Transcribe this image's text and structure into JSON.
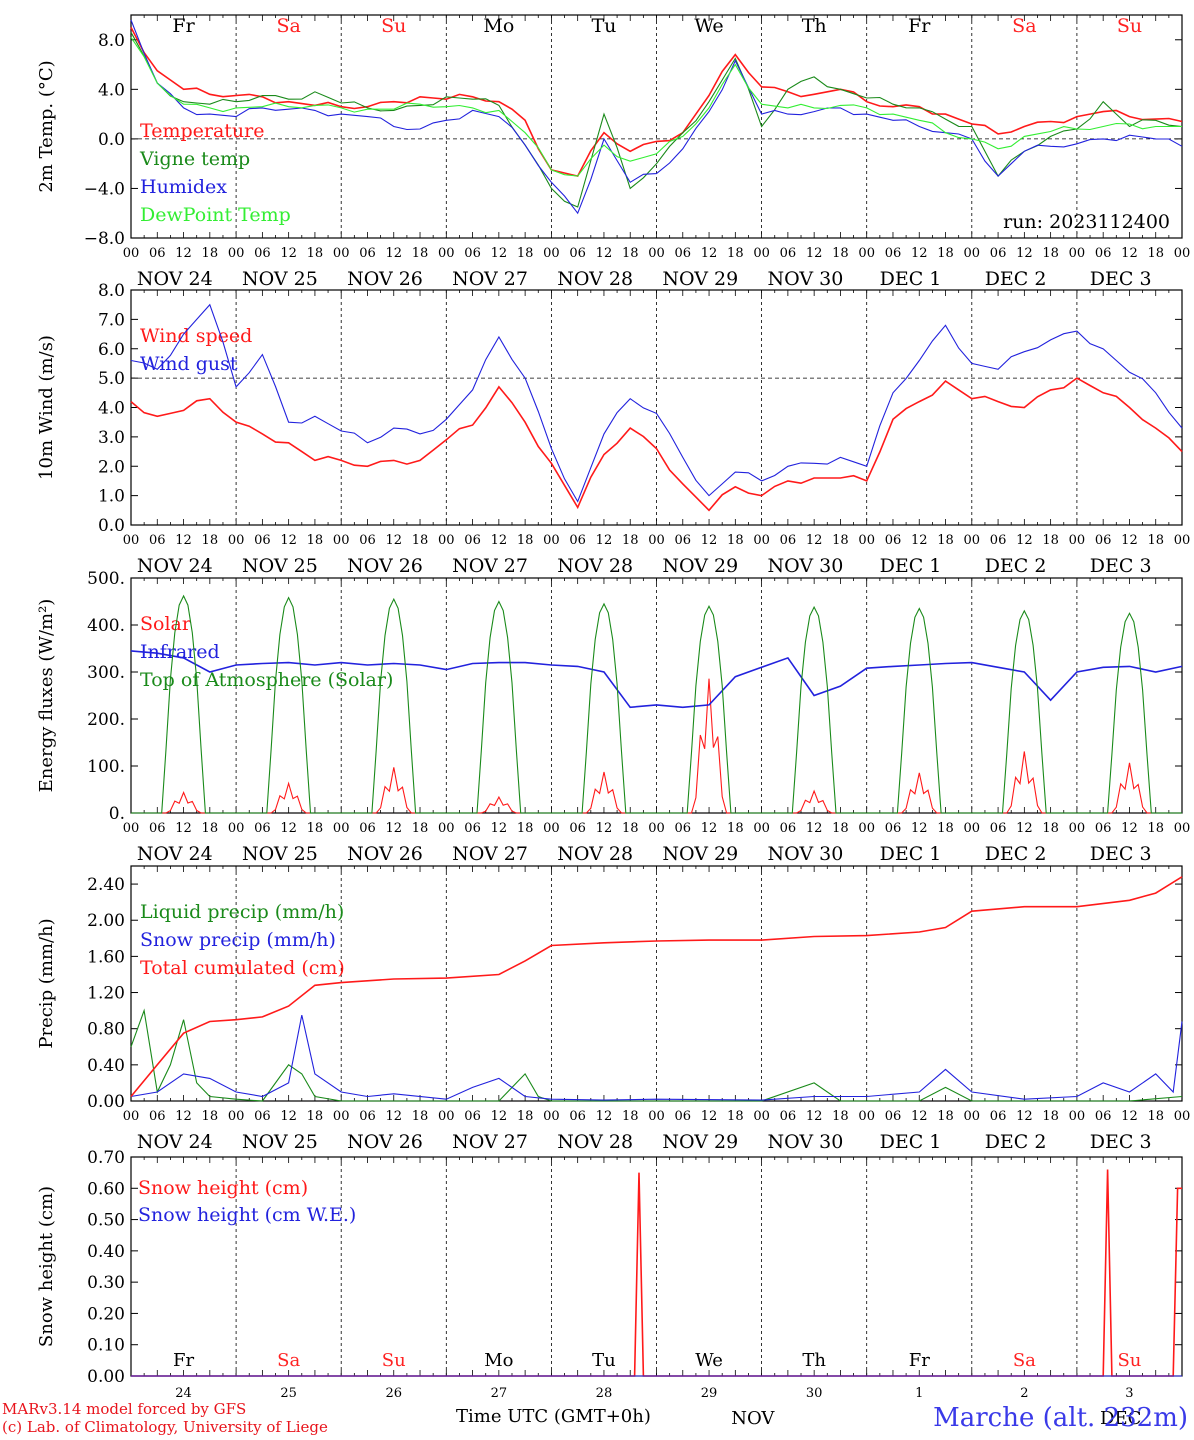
{
  "chart_data": [
    {
      "type": "line",
      "ylabel": "2m Temp. (°C)",
      "ylim": [
        -8,
        10
      ],
      "yticks": [
        "8.0",
        "4.0",
        "0.0",
        "−4.0",
        "−8.0"
      ],
      "ytick_values": [
        8,
        4,
        0,
        -4,
        -8
      ],
      "reference_line": 0,
      "day_labels": [
        "Fr",
        "Sa",
        "Su",
        "Mo",
        "Tu",
        "We",
        "Th",
        "Fr",
        "Sa",
        "Su"
      ],
      "run_label": "run: 2023112400",
      "x_hours": [
        0,
        6,
        12,
        18,
        24,
        30,
        36,
        42,
        48,
        54,
        60,
        66,
        72,
        78,
        84,
        90,
        96,
        102,
        108,
        114,
        120,
        126,
        132,
        138,
        144,
        150,
        156,
        162,
        168,
        174,
        180,
        186,
        192,
        198,
        204,
        210,
        216,
        222,
        228,
        234,
        240
      ],
      "series": [
        {
          "name": "Temperature",
          "color": "#ff1a1a",
          "values": [
            9.0,
            5.5,
            4.0,
            3.6,
            3.5,
            3.4,
            3.0,
            2.7,
            2.6,
            2.6,
            3.0,
            3.4,
            3.2,
            3.4,
            3.0,
            1.5,
            -2.5,
            -3.0,
            0.5,
            -1.0,
            -0.2,
            0.5,
            3.5,
            6.8,
            4.2,
            3.8,
            3.6,
            4.0,
            3.0,
            2.6,
            2.6,
            2.0,
            1.2,
            0.4,
            1.0,
            1.4,
            1.8,
            2.2,
            1.8,
            1.6,
            1.4
          ]
        },
        {
          "name": "Vigne temp",
          "color": "#1a8a1a",
          "values": [
            8.6,
            4.5,
            3.0,
            2.8,
            3.0,
            3.5,
            3.2,
            3.8,
            2.9,
            2.5,
            2.3,
            2.7,
            3.4,
            3.2,
            2.7,
            -0.5,
            -4.0,
            -5.5,
            2.0,
            -4.0,
            -2.0,
            0.5,
            3.0,
            6.5,
            1.0,
            4.0,
            5.0,
            4.0,
            3.3,
            2.8,
            2.5,
            1.6,
            1.0,
            -3.0,
            -1.0,
            0.2,
            0.8,
            3.0,
            1.0,
            1.5,
            1.0
          ]
        },
        {
          "name": "Humidex",
          "color": "#2222dd",
          "values": [
            9.6,
            4.5,
            2.5,
            2.0,
            1.8,
            2.5,
            2.4,
            2.3,
            2.0,
            1.8,
            1.0,
            0.8,
            1.5,
            2.3,
            1.8,
            -0.5,
            -3.5,
            -6.0,
            0.0,
            -3.5,
            -2.8,
            -0.8,
            2.2,
            6.3,
            2.0,
            2.0,
            2.2,
            2.5,
            2.0,
            1.5,
            1.0,
            0.5,
            0.0,
            -3.0,
            -1.0,
            -0.6,
            -0.4,
            0.0,
            0.3,
            0.0,
            -0.6
          ]
        },
        {
          "name": "DewPoint Temp",
          "color": "#33ee33",
          "values": [
            8.2,
            4.5,
            2.8,
            2.5,
            2.5,
            2.6,
            2.6,
            2.7,
            2.5,
            2.4,
            2.4,
            2.8,
            2.6,
            2.5,
            2.3,
            0.5,
            -2.5,
            -3.0,
            -0.5,
            -1.8,
            -1.2,
            0.2,
            2.5,
            6.0,
            2.8,
            2.5,
            2.5,
            2.7,
            2.5,
            2.0,
            1.5,
            0.5,
            0.0,
            -0.8,
            0.2,
            0.6,
            0.8,
            1.0,
            1.2,
            1.0,
            1.0
          ]
        }
      ]
    },
    {
      "type": "line",
      "ylabel": "10m Wind (m/s)",
      "ylim": [
        0,
        8
      ],
      "yticks": [
        "8.0",
        "7.0",
        "6.0",
        "5.0",
        "4.0",
        "3.0",
        "2.0",
        "1.0",
        "0.0"
      ],
      "ytick_values": [
        8,
        7,
        6,
        5,
        4,
        3,
        2,
        1,
        0
      ],
      "reference_line": 5,
      "x_hours": [
        0,
        6,
        12,
        18,
        24,
        30,
        36,
        42,
        48,
        54,
        60,
        66,
        72,
        78,
        84,
        90,
        96,
        102,
        108,
        114,
        120,
        126,
        132,
        138,
        144,
        150,
        156,
        162,
        168,
        174,
        180,
        186,
        192,
        198,
        204,
        210,
        216,
        222,
        228,
        234,
        240
      ],
      "series": [
        {
          "name": "Wind speed",
          "color": "#ff1a1a",
          "values": [
            4.2,
            3.7,
            3.9,
            4.3,
            3.5,
            3.1,
            2.8,
            2.2,
            2.2,
            2.0,
            2.2,
            2.2,
            2.9,
            3.4,
            4.7,
            3.5,
            2.1,
            0.6,
            2.4,
            3.3,
            2.6,
            1.4,
            0.5,
            1.3,
            1.0,
            1.5,
            1.6,
            1.6,
            1.5,
            3.6,
            4.2,
            4.9,
            4.3,
            4.2,
            4.0,
            4.6,
            5.0,
            4.5,
            4.0,
            3.3,
            2.5
          ]
        },
        {
          "name": "Wind gust",
          "color": "#2222dd",
          "values": [
            5.6,
            5.3,
            6.5,
            7.5,
            4.7,
            5.8,
            3.5,
            3.7,
            3.2,
            2.8,
            3.3,
            3.1,
            3.6,
            4.6,
            6.4,
            5.0,
            2.6,
            0.8,
            3.1,
            4.3,
            3.8,
            2.3,
            1.0,
            1.8,
            1.5,
            2.0,
            2.1,
            2.3,
            2.0,
            4.5,
            5.6,
            6.8,
            5.5,
            5.3,
            5.9,
            6.3,
            6.6,
            6.0,
            5.2,
            4.5,
            3.3
          ]
        }
      ]
    },
    {
      "type": "line",
      "ylabel": "Energy fluxes (W/m²)",
      "ylim": [
        0,
        500
      ],
      "yticks": [
        "500.",
        "400.",
        "300.",
        "200.",
        "100.",
        "0."
      ],
      "ytick_values": [
        500,
        400,
        300,
        200,
        100,
        0
      ],
      "series": [
        {
          "name": "Solar",
          "color": "#ff1a1a",
          "day_peaks": [
            45,
            65,
            100,
            35,
            90,
            295,
            48,
            88,
            135,
            110
          ]
        },
        {
          "name": "Infrared",
          "color": "#2222dd",
          "hours": [
            0,
            6,
            12,
            18,
            24,
            30,
            36,
            42,
            48,
            54,
            60,
            66,
            72,
            78,
            84,
            90,
            96,
            102,
            108,
            114,
            120,
            126,
            132,
            138,
            144,
            150,
            156,
            162,
            168,
            174,
            180,
            186,
            192,
            198,
            204,
            210,
            216,
            222,
            228,
            234,
            240
          ],
          "values": [
            345,
            340,
            330,
            300,
            315,
            318,
            320,
            315,
            320,
            315,
            318,
            315,
            305,
            318,
            320,
            320,
            315,
            312,
            300,
            225,
            230,
            225,
            230,
            290,
            310,
            330,
            250,
            270,
            308,
            312,
            315,
            318,
            320,
            310,
            300,
            240,
            300,
            310,
            312,
            300,
            312
          ]
        },
        {
          "name": "Top of Atmosphere (Solar)",
          "color": "#1a8a1a",
          "day_peaks": [
            462,
            458,
            455,
            450,
            445,
            440,
            438,
            435,
            430,
            425
          ]
        }
      ]
    },
    {
      "type": "line",
      "ylabel": "Precip (mm/h)",
      "ylim": [
        0,
        2.6
      ],
      "yticks": [
        "2.40",
        "2.00",
        "1.60",
        "1.20",
        "0.80",
        "0.40",
        "0.00"
      ],
      "ytick_values": [
        2.4,
        2.0,
        1.6,
        1.2,
        0.8,
        0.4,
        0.0
      ],
      "series": [
        {
          "name": "Liquid precip (mm/h)",
          "color": "#1a8a1a",
          "hours": [
            0,
            3,
            6,
            9,
            12,
            15,
            18,
            24,
            30,
            36,
            39,
            42,
            48,
            60,
            72,
            84,
            90,
            93,
            96,
            108,
            120,
            144,
            156,
            162,
            180,
            186,
            192,
            204,
            216,
            228,
            240
          ],
          "values": [
            0.6,
            1.0,
            0.1,
            0.4,
            0.9,
            0.2,
            0.05,
            0.02,
            0.0,
            0.4,
            0.3,
            0.05,
            0.0,
            0.0,
            0.0,
            0.0,
            0.3,
            0.05,
            0.0,
            0.0,
            0.0,
            0.0,
            0.2,
            0.0,
            0.0,
            0.15,
            0.0,
            0.0,
            0.0,
            0.0,
            0.05
          ]
        },
        {
          "name": "Snow precip (mm/h)",
          "color": "#2222dd",
          "hours": [
            0,
            6,
            12,
            18,
            24,
            30,
            36,
            39,
            42,
            48,
            54,
            60,
            72,
            78,
            84,
            90,
            96,
            108,
            120,
            144,
            156,
            168,
            180,
            186,
            192,
            204,
            216,
            222,
            228,
            234,
            238,
            240
          ],
          "values": [
            0.05,
            0.1,
            0.3,
            0.25,
            0.1,
            0.05,
            0.2,
            0.95,
            0.3,
            0.1,
            0.05,
            0.08,
            0.02,
            0.15,
            0.25,
            0.05,
            0.02,
            0.01,
            0.02,
            0.01,
            0.05,
            0.05,
            0.1,
            0.35,
            0.1,
            0.02,
            0.05,
            0.2,
            0.1,
            0.3,
            0.1,
            0.88
          ]
        },
        {
          "name": "Total cumulated (cm)",
          "color": "#ff1a1a",
          "hours": [
            0,
            6,
            12,
            18,
            24,
            30,
            36,
            42,
            48,
            60,
            72,
            84,
            90,
            96,
            108,
            120,
            132,
            144,
            156,
            168,
            180,
            186,
            192,
            204,
            216,
            228,
            234,
            240
          ],
          "values": [
            0.05,
            0.4,
            0.75,
            0.88,
            0.9,
            0.93,
            1.05,
            1.28,
            1.31,
            1.35,
            1.36,
            1.4,
            1.55,
            1.72,
            1.75,
            1.77,
            1.78,
            1.78,
            1.82,
            1.83,
            1.87,
            1.92,
            2.1,
            2.15,
            2.15,
            2.22,
            2.3,
            2.48
          ]
        }
      ]
    },
    {
      "type": "line",
      "ylabel": "Snow height (cm)",
      "ylim": [
        0,
        0.7
      ],
      "yticks": [
        "0.70",
        "0.60",
        "0.50",
        "0.40",
        "0.30",
        "0.20",
        "0.10",
        "0.00"
      ],
      "ytick_values": [
        0.7,
        0.6,
        0.5,
        0.4,
        0.3,
        0.2,
        0.1,
        0.0
      ],
      "day_labels": [
        "Fr",
        "Sa",
        "Su",
        "Mo",
        "Tu",
        "We",
        "Th",
        "Fr",
        "Sa",
        "Su"
      ],
      "date_numbers": [
        "24",
        "25",
        "26",
        "27",
        "28",
        "29",
        "30",
        "1",
        "2",
        "3"
      ],
      "series": [
        {
          "name": "Snow height (cm)",
          "color": "#ff1a1a",
          "hours": [
            0,
            115,
            116,
            117,
            222,
            223,
            224,
            238,
            239,
            240
          ],
          "values": [
            0,
            0,
            0.65,
            0,
            0,
            0.66,
            0,
            0,
            0.6,
            0.6
          ]
        },
        {
          "name": "Snow height (cm W.E.)",
          "color": "#2222dd",
          "hours": [
            0,
            240
          ],
          "values": [
            0,
            0
          ]
        }
      ]
    }
  ],
  "x_axis": {
    "hour_labels": [
      "00",
      "06",
      "12",
      "18"
    ],
    "end_label": "00",
    "dates": [
      "NOV 24",
      "NOV 25",
      "NOV 26",
      "NOV 27",
      "NOV 28",
      "NOV 29",
      "NOV 30",
      "DEC  1",
      "DEC  2",
      "DEC  3"
    ],
    "weekend_color": "#ff2222",
    "weekday_color": "#000000"
  },
  "footer": {
    "credit_line1": "MARv3.14 model forced by GFS",
    "credit_line2": "(c) Lab. of Climatology, University of Liege",
    "time_label": "Time UTC (GMT+0h)",
    "station": "Marche (alt. 232m)",
    "overlap_text": "NOV",
    "overlap_text2": "DEC"
  }
}
